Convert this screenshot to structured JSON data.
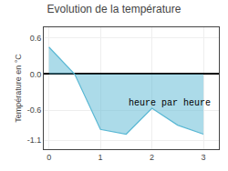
{
  "chart_data": {
    "type": "area",
    "title": "Evolution de la température",
    "y_label": "Température en °C",
    "annotations": [
      "heure par heure"
    ],
    "x": [
      0,
      0.5,
      1.0,
      1.5,
      2.0,
      2.5,
      3.0
    ],
    "values": [
      0.45,
      0.0,
      -0.92,
      -1.0,
      -0.57,
      -0.85,
      -1.0
    ],
    "color": "#5ab8d4",
    "xlim": [
      -0.1,
      3.3
    ],
    "xticks": [
      0,
      1,
      2,
      3
    ],
    "ylim": [
      -1.25,
      0.78
    ],
    "yticks": [
      -1.1,
      -0.6,
      {
        "value": 0,
        "label": "0.0"
      },
      0.6
    ],
    "grid": true
  }
}
